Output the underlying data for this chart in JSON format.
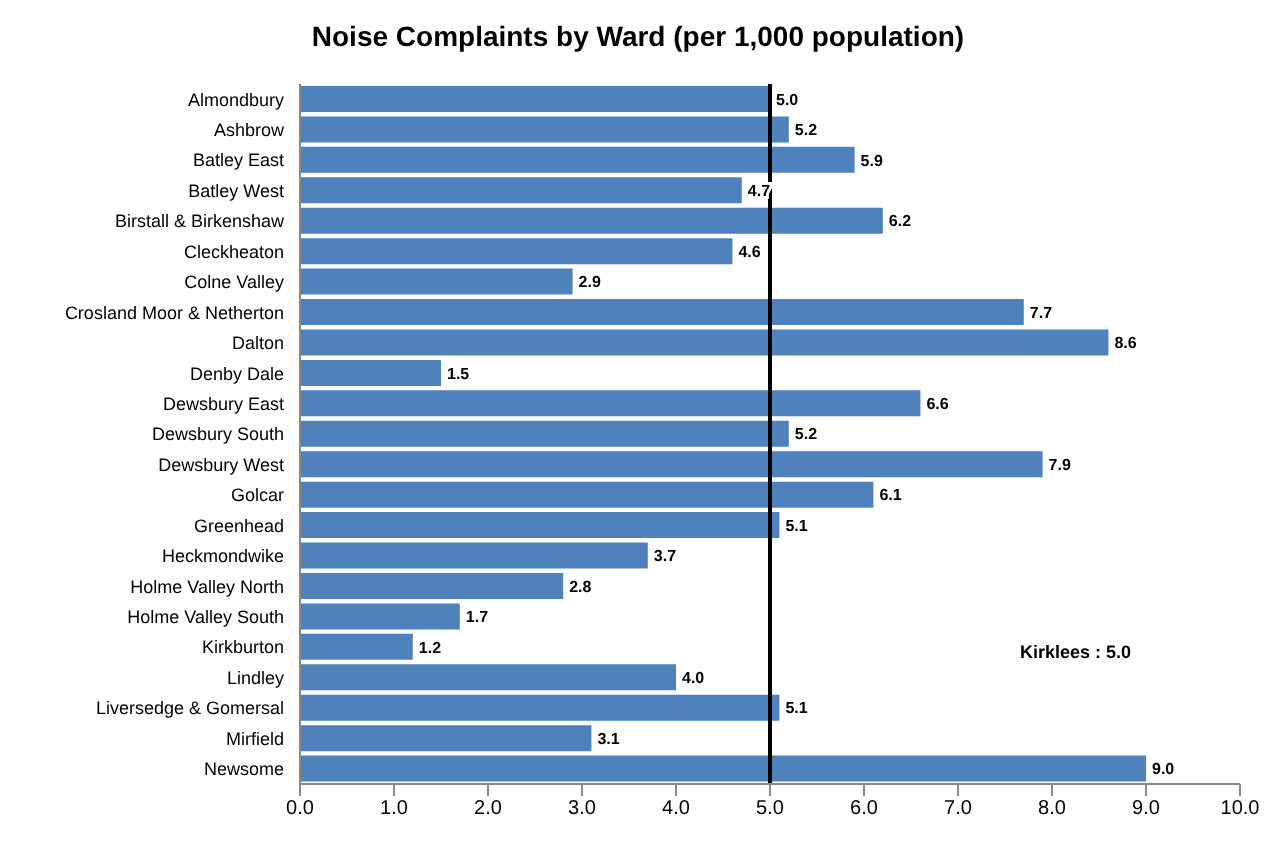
{
  "chart_data": {
    "type": "bar",
    "orientation": "horizontal",
    "title": "Noise Complaints by Ward (per 1,000 population)",
    "categories": [
      "Almondbury",
      "Ashbrow",
      "Batley East",
      "Batley West",
      "Birstall & Birkenshaw",
      "Cleckheaton",
      "Colne Valley",
      "Crosland Moor & Netherton",
      "Dalton",
      "Denby Dale",
      "Dewsbury East",
      "Dewsbury South",
      "Dewsbury West",
      "Golcar",
      "Greenhead",
      "Heckmondwike",
      "Holme Valley North",
      "Holme Valley South",
      "Kirkburton",
      "Lindley",
      "Liversedge & Gomersal",
      "Mirfield",
      "Newsome"
    ],
    "values": [
      5.0,
      5.2,
      5.9,
      4.7,
      6.2,
      4.6,
      2.9,
      7.7,
      8.6,
      1.5,
      6.6,
      5.2,
      7.9,
      6.1,
      5.1,
      3.7,
      2.8,
      1.7,
      1.2,
      4.0,
      5.1,
      3.1,
      9.0
    ],
    "value_labels": [
      "5.0",
      "5.2",
      "5.9",
      "4.7",
      "6.2",
      "4.6",
      "2.9",
      "7.7",
      "8.6",
      "1.5",
      "6.6",
      "5.2",
      "7.9",
      "6.1",
      "5.1",
      "3.7",
      "2.8",
      "1.7",
      "1.2",
      "4.0",
      "5.1",
      "3.1",
      "9.0"
    ],
    "color": "#4f81bd",
    "xlim": [
      0,
      10
    ],
    "xticks": [
      {
        "value": 0,
        "label": "0.0"
      },
      {
        "value": 1,
        "label": "1.0"
      },
      {
        "value": 2,
        "label": "2.0"
      },
      {
        "value": 3,
        "label": "3.0"
      },
      {
        "value": 4,
        "label": "4.0"
      },
      {
        "value": 5,
        "label": "5.0"
      },
      {
        "value": 6,
        "label": "6.0"
      },
      {
        "value": 7,
        "label": "7.0"
      },
      {
        "value": 8,
        "label": "8.0"
      },
      {
        "value": 9,
        "label": "9.0"
      },
      {
        "value": 10,
        "label": "10.0"
      }
    ],
    "ref_lines": [
      {
        "axis": "x",
        "value": 5.0,
        "label": "Kirklees : 5.0",
        "color": "#000000"
      }
    ],
    "grid": false
  }
}
